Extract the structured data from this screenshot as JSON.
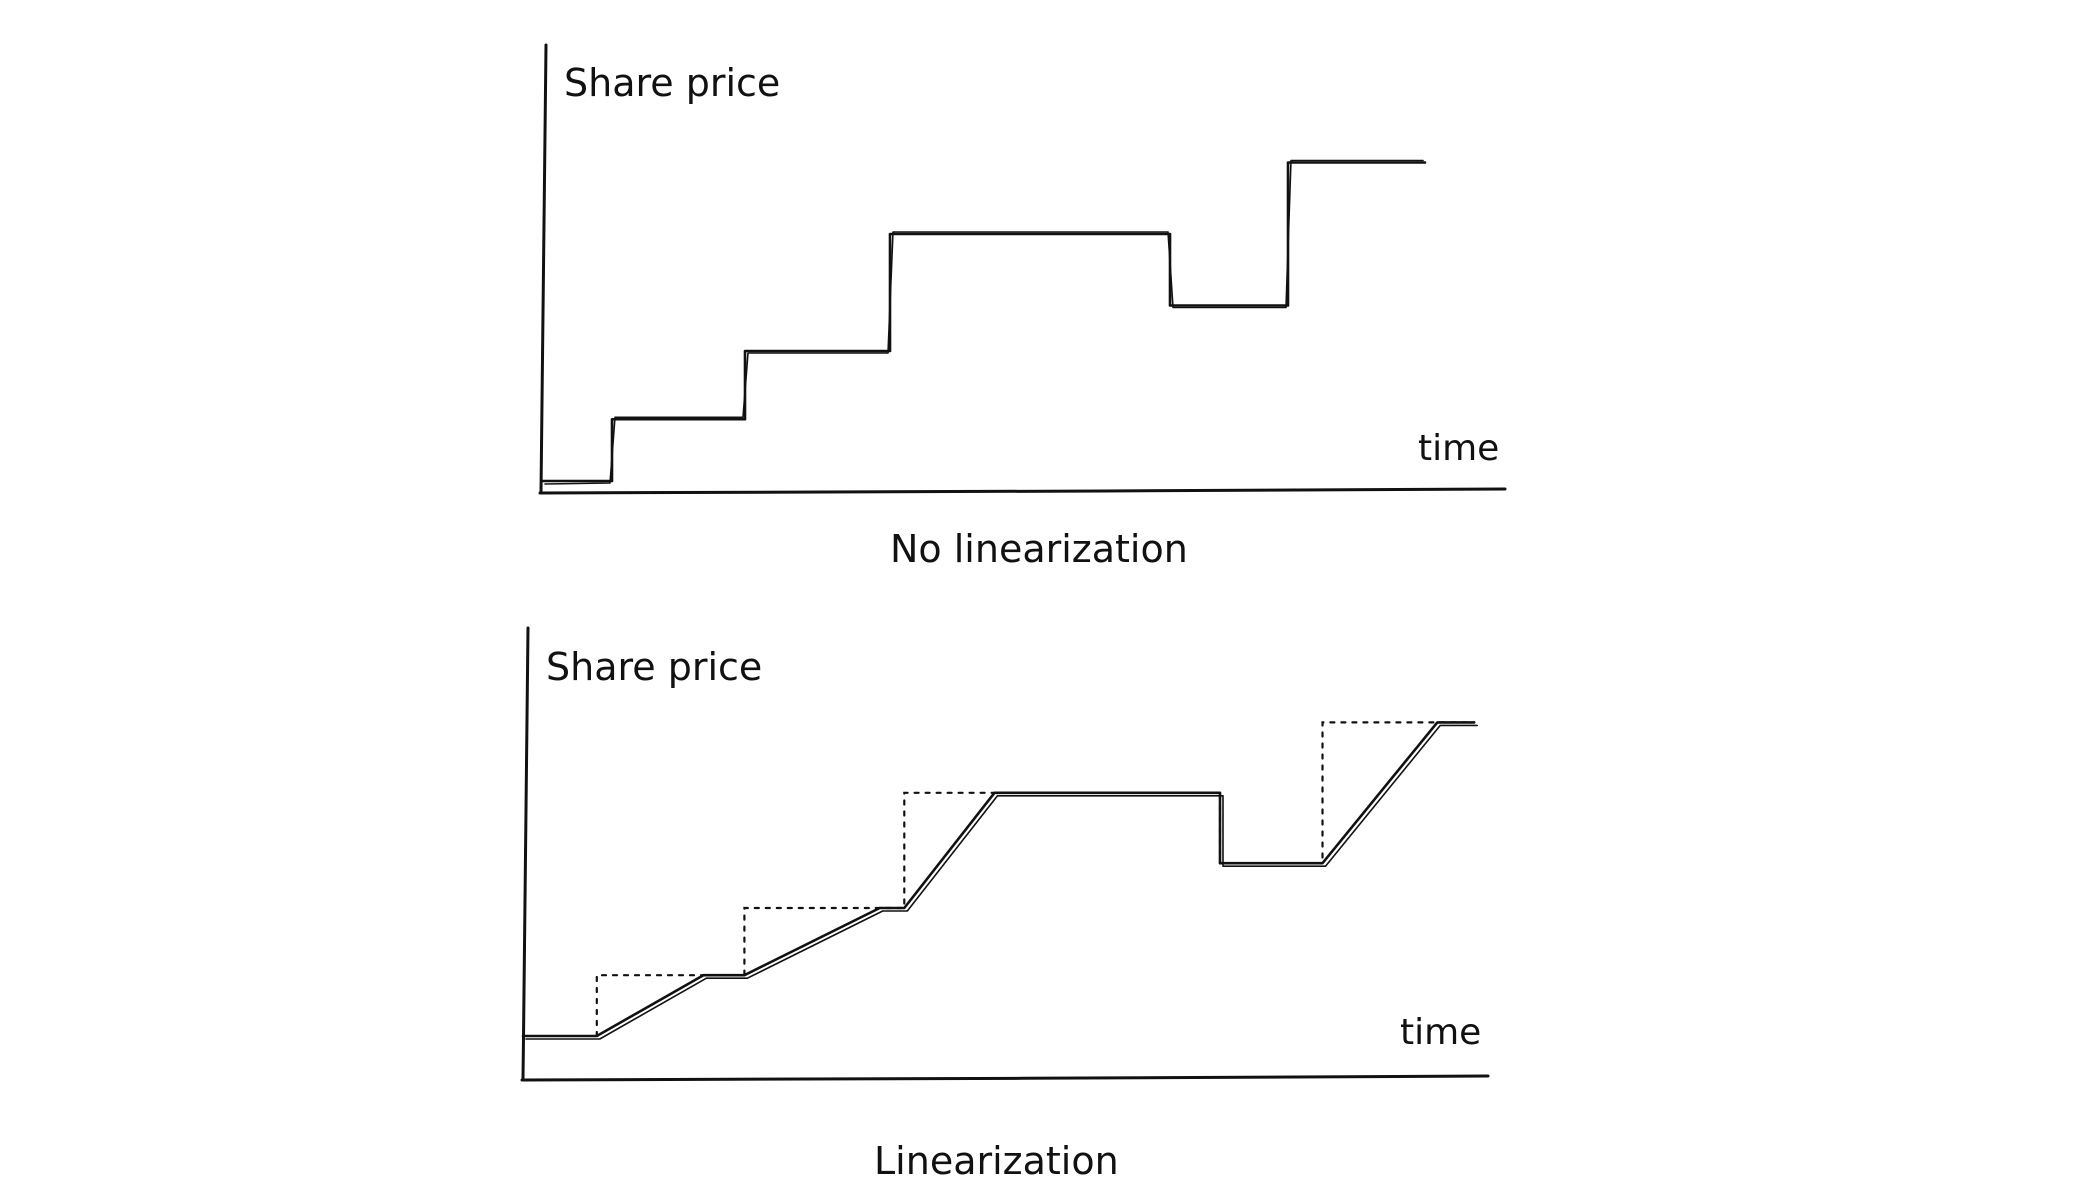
{
  "diagrams": [
    {
      "id": "no-linearization",
      "y_axis_label": "Share price",
      "x_axis_label": "time",
      "caption": "No linearization",
      "step_curve": [
        [
          0,
          1.0
        ],
        [
          1,
          1.95
        ],
        [
          2,
          3.0
        ],
        [
          3,
          4.8
        ],
        [
          4,
          3.7
        ],
        [
          5,
          5.9
        ]
      ],
      "end_x": 6
    },
    {
      "id": "linearization",
      "y_axis_label": "Share price",
      "x_axis_label": "time",
      "caption": "Linearization",
      "linear_curve": [
        [
          0,
          1.0
        ],
        [
          0.9,
          1.0
        ],
        [
          2.2,
          1.95
        ],
        [
          2.7,
          1.95
        ],
        [
          4.35,
          3.0
        ],
        [
          4.65,
          3.0
        ],
        [
          5.75,
          4.8
        ],
        [
          8.5,
          4.8
        ],
        [
          8.5,
          3.7
        ],
        [
          9.75,
          3.7
        ],
        [
          11.15,
          5.9
        ],
        [
          11.6,
          5.9
        ]
      ],
      "dotted_steps": [
        [
          0.9,
          1.0
        ],
        [
          0.9,
          1.95
        ],
        [
          2.7,
          1.95
        ],
        [
          2.7,
          3.0
        ],
        [
          4.65,
          3.0
        ],
        [
          4.65,
          4.8
        ],
        [
          8.5,
          4.8
        ],
        [
          8.5,
          3.7
        ],
        [
          9.75,
          3.7
        ],
        [
          9.75,
          5.9
        ],
        [
          11.6,
          5.9
        ]
      ],
      "end_x": 11.6
    }
  ]
}
